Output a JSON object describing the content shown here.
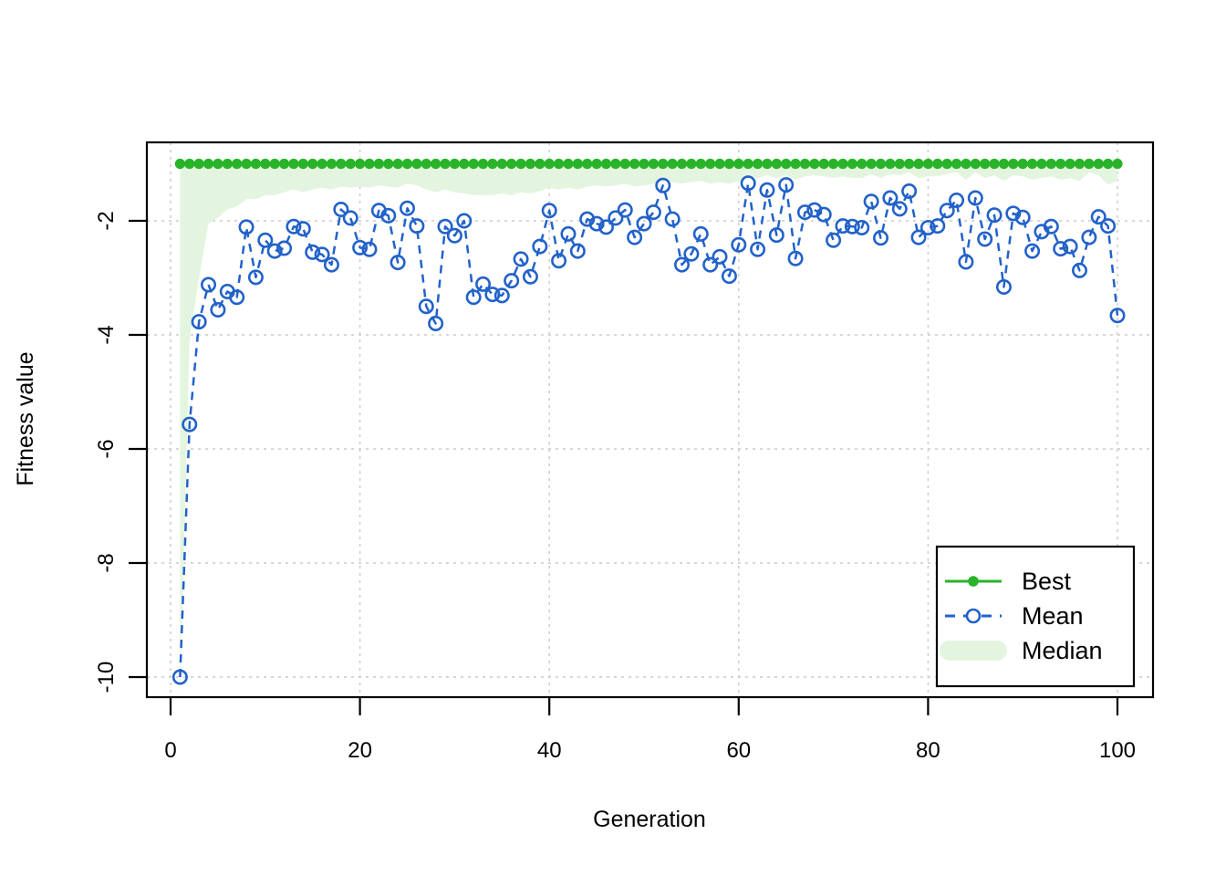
{
  "figure": {
    "background": "#ffffff"
  },
  "chart_data": {
    "type": "line",
    "title": "",
    "xlabel": "Generation",
    "ylabel": "Fitness value",
    "xlim": [
      -3.3,
      104
    ],
    "ylim": [
      -10.34,
      -0.62
    ],
    "x_ticks": [
      0,
      20,
      40,
      60,
      80,
      100
    ],
    "y_ticks": [
      -10,
      -8,
      -6,
      -4,
      -2
    ],
    "grid": "dashed-both-axes",
    "legend_position": "bottom-right",
    "colors": {
      "best": "#29b329",
      "mean": "#2262c9",
      "median_fill": "#e3f5df",
      "grid": "#cccccc",
      "axis": "#000000",
      "legend_bg": "#ffffff"
    },
    "generations": {
      "start": 1,
      "end": 100
    },
    "series": [
      {
        "name": "Best",
        "style": "solid-line-filled-dots",
        "constant_value": -1.0
      },
      {
        "name": "Mean",
        "style": "dashed-line-open-circles",
        "values": [
          -10.0,
          -5.57,
          -3.77,
          -3.12,
          -3.56,
          -3.24,
          -3.34,
          -2.11,
          -2.99,
          -2.34,
          -2.53,
          -2.48,
          -2.1,
          -2.14,
          -2.55,
          -2.59,
          -2.77,
          -1.8,
          -1.95,
          -2.47,
          -2.5,
          -1.82,
          -1.91,
          -2.73,
          -1.78,
          -2.09,
          -3.5,
          -3.8,
          -2.1,
          -2.26,
          -2.0,
          -3.34,
          -3.11,
          -3.29,
          -3.31,
          -3.05,
          -2.67,
          -2.98,
          -2.45,
          -1.82,
          -2.7,
          -2.23,
          -2.53,
          -1.97,
          -2.05,
          -2.11,
          -1.95,
          -1.81,
          -2.29,
          -2.05,
          -1.85,
          -1.38,
          -1.97,
          -2.77,
          -2.58,
          -2.23,
          -2.77,
          -2.63,
          -2.97,
          -2.42,
          -1.34,
          -2.5,
          -1.46,
          -2.25,
          -1.37,
          -2.66,
          -1.85,
          -1.81,
          -1.89,
          -2.34,
          -2.09,
          -2.1,
          -2.12,
          -1.66,
          -2.3,
          -1.6,
          -1.79,
          -1.48,
          -2.29,
          -2.12,
          -2.09,
          -1.82,
          -1.64,
          -2.72,
          -1.6,
          -2.32,
          -1.9,
          -3.16,
          -1.87,
          -1.94,
          -2.53,
          -2.19,
          -2.1,
          -2.49,
          -2.45,
          -2.87,
          -2.29,
          -1.93,
          -2.09,
          -3.66
        ]
      },
      {
        "name": "Median",
        "style": "filled-band-from-best-to-median",
        "values": [
          -10.34,
          -4.1,
          -3.0,
          -2.05,
          -1.95,
          -1.8,
          -1.75,
          -1.62,
          -1.62,
          -1.55,
          -1.55,
          -1.5,
          -1.45,
          -1.5,
          -1.45,
          -1.42,
          -1.45,
          -1.4,
          -1.42,
          -1.4,
          -1.42,
          -1.38,
          -1.4,
          -1.42,
          -1.35,
          -1.38,
          -1.45,
          -1.5,
          -1.45,
          -1.5,
          -1.52,
          -1.55,
          -1.55,
          -1.55,
          -1.52,
          -1.55,
          -1.5,
          -1.52,
          -1.48,
          -1.42,
          -1.45,
          -1.42,
          -1.45,
          -1.4,
          -1.38,
          -1.4,
          -1.38,
          -1.35,
          -1.4,
          -1.38,
          -1.35,
          -1.3,
          -1.32,
          -1.35,
          -1.32,
          -1.3,
          -1.35,
          -1.32,
          -1.35,
          -1.3,
          -1.22,
          -1.25,
          -1.2,
          -1.25,
          -1.2,
          -1.28,
          -1.22,
          -1.2,
          -1.22,
          -1.25,
          -1.22,
          -1.25,
          -1.25,
          -1.18,
          -1.25,
          -1.18,
          -1.2,
          -1.15,
          -1.25,
          -1.22,
          -1.22,
          -1.18,
          -1.15,
          -1.28,
          -1.15,
          -1.25,
          -1.2,
          -1.3,
          -1.2,
          -1.22,
          -1.28,
          -1.25,
          -1.22,
          -1.28,
          -1.25,
          -1.3,
          -1.15,
          -1.2,
          -1.36,
          -1.3
        ]
      }
    ]
  }
}
